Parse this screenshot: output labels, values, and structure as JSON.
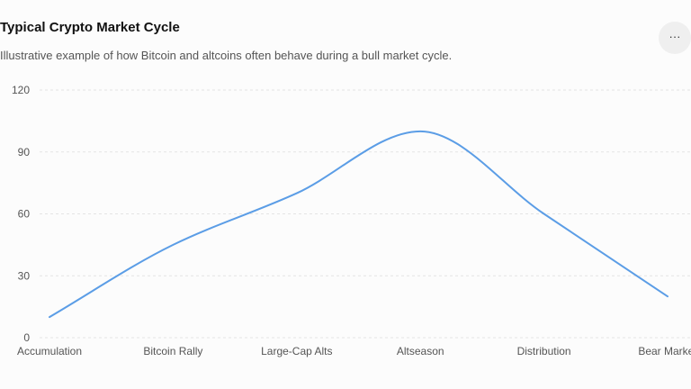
{
  "card": {
    "title": "Typical Crypto Market Cycle",
    "subtitle": "Illustrative example of how Bitcoin and altcoins often behave during a bull market cycle.",
    "menu_icon": "more-horizontal-icon",
    "menu_label": "···"
  },
  "chart_data": {
    "type": "line",
    "title": "Typical Crypto Market Cycle",
    "subtitle": "Illustrative example of how Bitcoin and altcoins often behave during a bull market cycle.",
    "categories": [
      "Accumulation",
      "Bitcoin Rally",
      "Large-Cap Alts",
      "Altseason",
      "Distribution",
      "Bear Market"
    ],
    "series": [
      {
        "values": [
          10,
          45,
          70,
          100,
          60,
          20
        ],
        "color": "#5b9de6"
      }
    ],
    "yticks": [
      0,
      30,
      60,
      90,
      120
    ],
    "ylim": [
      0,
      120
    ],
    "grid": true,
    "xlabel": "",
    "ylabel": ""
  }
}
